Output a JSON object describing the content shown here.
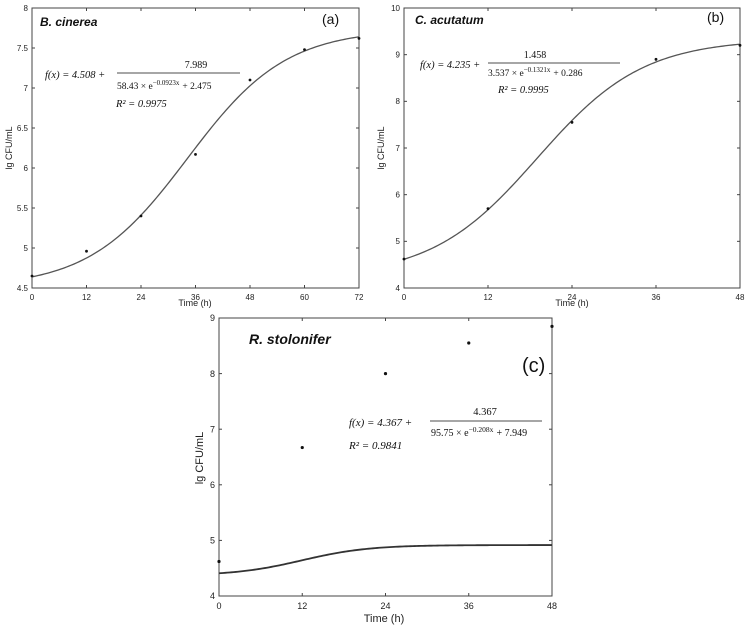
{
  "chart_data": [
    {
      "type": "line",
      "panel_label": "(a)",
      "species": "B. cinerea",
      "xlabel": "Time (h)",
      "ylabel": "lg CFU/mL",
      "xlim": [
        0,
        72
      ],
      "ylim": [
        4.5,
        8
      ],
      "xticks": [
        "0",
        "12",
        "24",
        "36",
        "48",
        "60",
        "72"
      ],
      "yticks": [
        "4.5",
        "5",
        "5.5",
        "6",
        "6.5",
        "7",
        "7.5",
        "8"
      ],
      "equation": {
        "lhs": "f(x) = 4.508 +",
        "numerator": "7.989",
        "denominator": "58.43 × e",
        "exponent": "−0.0923x",
        "denominator_tail": "+ 2.475",
        "r2": "R² = 0.9975"
      },
      "model": {
        "a": 4.508,
        "b": 7.989,
        "c": 58.43,
        "k": 0.0923,
        "d": 2.475
      },
      "points": {
        "x": [
          0,
          12,
          24,
          36,
          48,
          60,
          72
        ],
        "y": [
          4.65,
          4.96,
          5.4,
          6.17,
          7.1,
          7.48,
          7.62
        ]
      }
    },
    {
      "type": "line",
      "panel_label": "(b)",
      "species": "C. acutatum",
      "xlabel": "Time (h)",
      "ylabel": "lg CFU/mL",
      "xlim": [
        0,
        48
      ],
      "ylim": [
        4,
        10
      ],
      "xticks": [
        "0",
        "12",
        "24",
        "36",
        "48"
      ],
      "yticks": [
        "4",
        "5",
        "6",
        "7",
        "8",
        "9",
        "10"
      ],
      "equation": {
        "lhs": "f(x) = 4.235 +",
        "numerator": "1.458",
        "denominator": "3.537 × e",
        "exponent": "−0.1321x",
        "denominator_tail": "+ 0.286",
        "r2": "R² = 0.9995"
      },
      "model": {
        "a": 4.235,
        "b": 1.458,
        "c": 3.537,
        "k": 0.1321,
        "d": 0.286
      },
      "points": {
        "x": [
          0,
          12,
          24,
          36,
          48
        ],
        "y": [
          4.62,
          5.7,
          7.55,
          8.9,
          9.2
        ]
      }
    },
    {
      "type": "line",
      "panel_label": "(c)",
      "species": "R. stolonifer",
      "xlabel": "Time (h)",
      "ylabel": "lg CFU/mL",
      "xlim": [
        0,
        48
      ],
      "ylim": [
        4,
        9
      ],
      "xticks": [
        "0",
        "12",
        "24",
        "36",
        "48"
      ],
      "yticks": [
        "4",
        "5",
        "6",
        "7",
        "8",
        "9"
      ],
      "equation": {
        "lhs": "f(x) = 4.367 +",
        "numerator": "4.367",
        "denominator": "95.75 × e",
        "exponent": "−0.208x",
        "denominator_tail": "+ 7.949",
        "r2": "R² = 0.9841"
      },
      "model": {
        "a": 4.367,
        "b": 4.367,
        "c": 95.75,
        "k": 0.208,
        "d": 7.949
      },
      "points": {
        "x": [
          0,
          12,
          24,
          36,
          48
        ],
        "y": [
          4.62,
          6.67,
          8.0,
          8.55,
          8.85
        ]
      }
    }
  ]
}
